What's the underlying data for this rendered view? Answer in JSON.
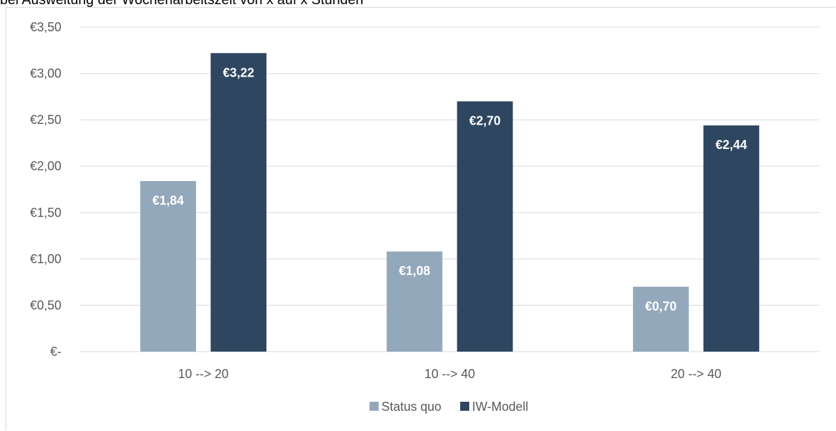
{
  "title_fragment": "bei Ausweitung der Wochenarbeitszeit von x auf x Stunden",
  "chart_data": {
    "type": "bar",
    "categories": [
      "10 --> 20",
      "10 --> 40",
      "20 --> 40"
    ],
    "series": [
      {
        "name": "Status quo",
        "values": [
          1.84,
          1.08,
          0.7
        ],
        "labels": [
          "€1,84",
          "€1,08",
          "€0,70"
        ],
        "color": "#94a8bb"
      },
      {
        "name": "IW-Modell",
        "values": [
          3.22,
          2.7,
          2.44
        ],
        "labels": [
          "€3,22",
          "€2,70",
          "€2,44"
        ],
        "color": "#2e4660"
      }
    ],
    "ylim": [
      0,
      3.5
    ],
    "yticks": [
      0,
      0.5,
      1.0,
      1.5,
      2.0,
      2.5,
      3.0,
      3.5
    ],
    "ytick_labels": [
      "€-",
      "€0,50",
      "€1,00",
      "€1,50",
      "€2,00",
      "€2,50",
      "€3,00",
      "€3,50"
    ],
    "grid": true,
    "legend_position": "bottom",
    "xlabel": "",
    "ylabel": ""
  }
}
